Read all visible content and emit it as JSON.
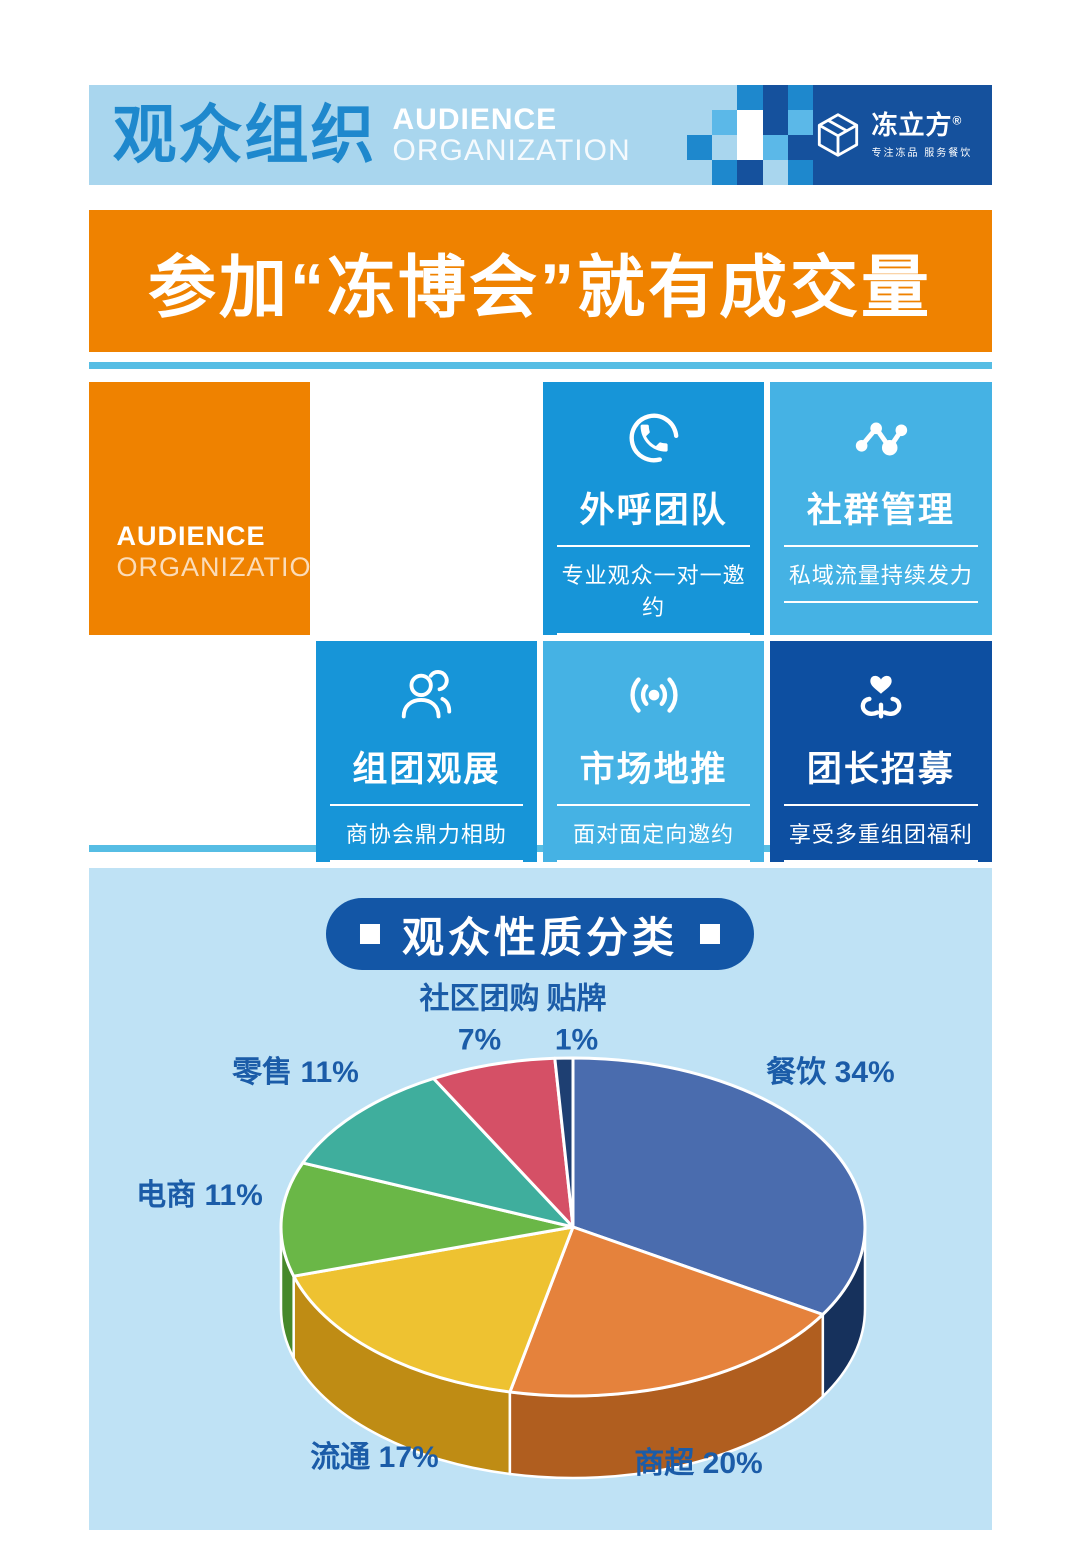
{
  "page": {
    "header": {
      "title_cn": "观众组织",
      "title_en_line1": "AUDIENCE",
      "title_en_line2": "ORGANIZATION",
      "logo_name": "冻立方",
      "logo_reg": "®",
      "logo_tagline": "专注冻品 服务餐饮"
    },
    "banner_text": "参加“冻博会”就有成交量",
    "audience_card": {
      "line1": "AUDIENCE",
      "line2": "ORGANIZATION"
    }
  },
  "feature_cards": [
    {
      "icon": "phone-icon",
      "title": "外呼团队",
      "subtitle": "专业观众一对一邀约",
      "color": "#1795d8"
    },
    {
      "icon": "share-icon",
      "title": "社群管理",
      "subtitle": "私域流量持续发力",
      "color": "#45b2e4"
    },
    {
      "icon": "person-icon",
      "title": "组团观展",
      "subtitle": "商协会鼎力相助",
      "color": "#1795d8"
    },
    {
      "icon": "broadcast-icon",
      "title": "市场地推",
      "subtitle": "面对面定向邀约",
      "color": "#45b2e4"
    },
    {
      "icon": "heart-hands-icon",
      "title": "团长招募",
      "subtitle": "享受多重组团福利",
      "color": "#0d4fa1"
    }
  ],
  "chart_section_title": "观众性质分类",
  "chart_data": {
    "type": "pie",
    "style": "3d",
    "title": "观众性质分类",
    "start_angle_deg": -90,
    "direction": "clockwise",
    "label_format": "{label} {value}%",
    "slices": [
      {
        "label": "餐饮",
        "value": 34,
        "color": "#4a6cae",
        "side_color": "#16315c"
      },
      {
        "label": "商超",
        "value": 20,
        "color": "#e5823c",
        "side_color": "#b05e1f"
      },
      {
        "label": "流通",
        "value": 17,
        "color": "#eec231",
        "side_color": "#bf8c14"
      },
      {
        "label": "电商",
        "value": 11,
        "color": "#6ab747",
        "side_color": "#47882a"
      },
      {
        "label": "零售",
        "value": 11,
        "color": "#3fae9d",
        "side_color": "#27756a"
      },
      {
        "label": "社区团购",
        "value": 7,
        "color": "#d55066",
        "side_color": "#97323f"
      },
      {
        "label": "贴牌",
        "value": 1,
        "color": "#1e3f72",
        "side_color": "#122a4e"
      }
    ]
  }
}
